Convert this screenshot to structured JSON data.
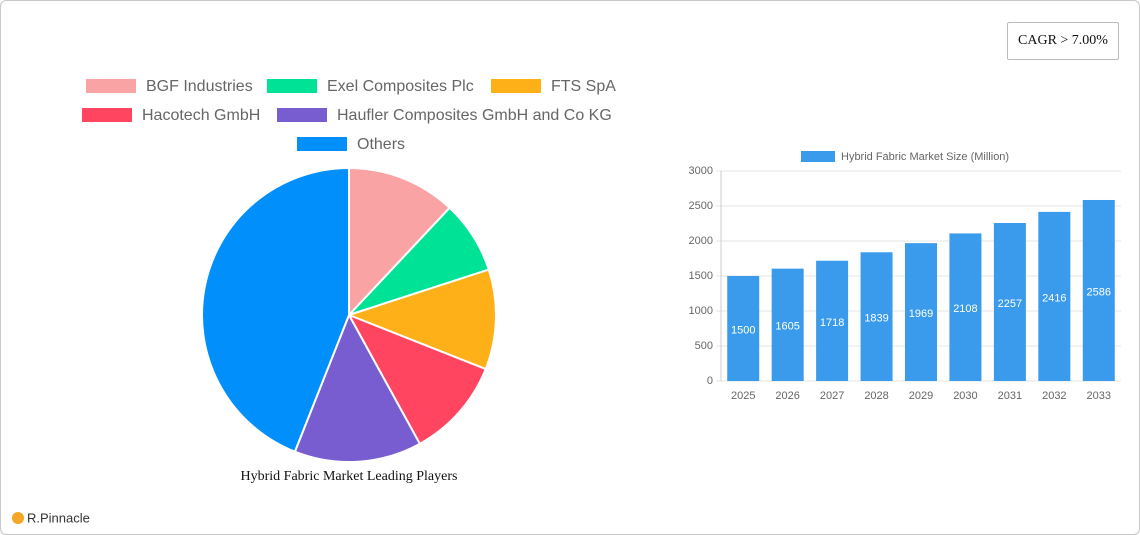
{
  "cagr": "CAGR > 7.00%",
  "brand": "R.Pinnacle",
  "chart_data": [
    {
      "type": "pie",
      "title": "Hybrid Fabric Market Leading Players",
      "categories": [
        "BGF Industries",
        "Exel Composites Plc",
        "FTS SpA",
        "Hacotech GmbH",
        "Haufler Composites GmbH and Co  KG",
        "Others"
      ],
      "values": [
        12,
        8,
        11,
        11,
        14,
        44
      ],
      "colors": [
        "#f9a3a4",
        "#00e396",
        "#feb019",
        "#ff4560",
        "#775dd0",
        "#008ffb"
      ]
    },
    {
      "type": "bar",
      "categories": [
        "2025",
        "2026",
        "2027",
        "2028",
        "2029",
        "2030",
        "2031",
        "2032",
        "2033"
      ],
      "series": [
        {
          "name": "Hybrid Fabric Market Size (Million)",
          "color": "#3a9bec",
          "values": [
            1500,
            1605,
            1718,
            1839,
            1969,
            2108,
            2257,
            2416,
            2586
          ]
        }
      ],
      "ylim": [
        0,
        3000
      ],
      "yticks": [
        0,
        500,
        1000,
        1500,
        2000,
        2500,
        3000
      ],
      "grid": true
    }
  ]
}
